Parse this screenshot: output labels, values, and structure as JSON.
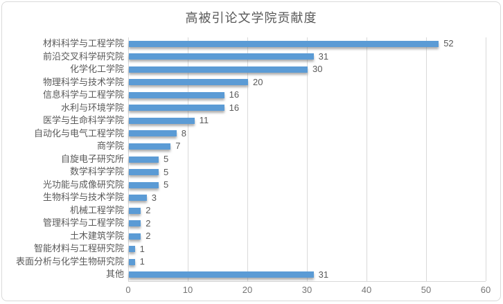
{
  "chart_data": {
    "type": "bar",
    "orientation": "horizontal",
    "title": "高被引论文学院贡献度",
    "categories": [
      "材料科学与工程学院",
      "前沿交叉科学研究院",
      "化学化工学院",
      "物理科学与技术学院",
      "信息科学与工程学院",
      "水利与环境学院",
      "医学与生命科学学院",
      "自动化与电气工程学院",
      "商学院",
      "自旋电子研究所",
      "数学科学学院",
      "光功能与成像研究院",
      "生物科学与技术学院",
      "机械工程学院",
      "管理科学与工程学院",
      "土木建筑学院",
      "智能材料与工程研究院",
      "表面分析与化学生物研究院",
      "其他"
    ],
    "values": [
      52,
      31,
      30,
      20,
      16,
      16,
      11,
      8,
      7,
      5,
      5,
      5,
      3,
      2,
      2,
      2,
      1,
      1,
      31
    ],
    "xlabel": "",
    "ylabel": "",
    "xlim": [
      0,
      60
    ],
    "x_ticks": [
      0,
      10,
      20,
      30,
      40,
      50,
      60
    ],
    "grid": "vertical-only",
    "legend": "none",
    "data_labels": true,
    "colors": {
      "bar": "#5b9bd5",
      "title_text": "#595959",
      "category_text": "#595959",
      "value_text": "#595959",
      "tick_text": "#757575",
      "gridline": "#d9d9d9",
      "frame_border": "#d9d9d9",
      "background": "#ffffff"
    }
  }
}
